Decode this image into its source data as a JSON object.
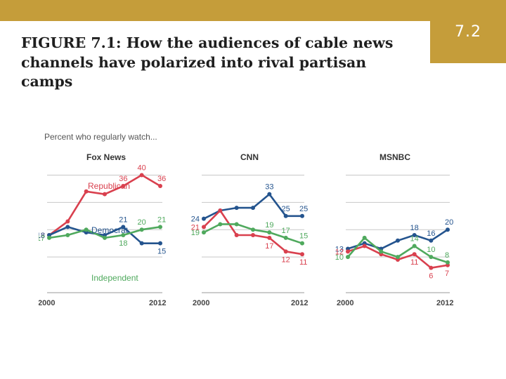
{
  "slide": {
    "title": "FIGURE 7.1: How the audiences of cable news channels have polarized into rival partisan camps",
    "badge": "7.2"
  },
  "colors": {
    "band": "#c59d3a",
    "republican": "#d9404e",
    "democrat": "#24548e",
    "independent": "#4fa95d",
    "grid": "#c8c8c8",
    "text_gray": "#555555"
  },
  "chart_data": [
    {
      "type": "line",
      "title": "Fox News",
      "subtitle": "Percent who regularly watch...",
      "x": [
        2000,
        2002,
        2004,
        2006,
        2008,
        2010,
        2012
      ],
      "x_tick_labels": [
        "2000",
        "2012"
      ],
      "ylim": [
        0,
        45
      ],
      "grid": true,
      "series": [
        {
          "name": "Republican",
          "color": "republican",
          "values": [
            18,
            23,
            34,
            33,
            36,
            40,
            36
          ],
          "labels": {
            "0": "18",
            "4": "36",
            "5": "40",
            "6": "36"
          }
        },
        {
          "name": "Democrat",
          "color": "democrat",
          "values": [
            18,
            21,
            19,
            18,
            21,
            15,
            15
          ],
          "labels": {
            "0": "18",
            "4": "21",
            "6": "15"
          }
        },
        {
          "name": "Independent",
          "color": "independent",
          "values": [
            17,
            18,
            20,
            17,
            18,
            20,
            21
          ],
          "labels": {
            "0": "17",
            "4": "18",
            "5": "20",
            "6": "21"
          }
        }
      ]
    },
    {
      "type": "line",
      "title": "CNN",
      "x": [
        2000,
        2002,
        2004,
        2006,
        2008,
        2010,
        2012
      ],
      "x_tick_labels": [
        "2000",
        "2012"
      ],
      "ylim": [
        0,
        45
      ],
      "grid": true,
      "series": [
        {
          "name": "Democrat",
          "color": "democrat",
          "values": [
            24,
            27,
            28,
            28,
            33,
            25,
            25
          ],
          "labels": {
            "0": "24",
            "4": "33",
            "5": "25",
            "6": "25"
          }
        },
        {
          "name": "Republican",
          "color": "republican",
          "values": [
            21,
            27,
            18,
            18,
            17,
            12,
            11
          ],
          "labels": {
            "0": "21",
            "4": "17",
            "5": "12",
            "6": "11"
          }
        },
        {
          "name": "Independent",
          "color": "independent",
          "values": [
            19,
            22,
            22,
            20,
            19,
            17,
            15
          ],
          "labels": {
            "0": "19",
            "4": "19",
            "5": "17",
            "6": "15"
          }
        }
      ]
    },
    {
      "type": "line",
      "title": "MSNBC",
      "x": [
        2000,
        2002,
        2004,
        2006,
        2008,
        2010,
        2012
      ],
      "x_tick_labels": [
        "2000",
        "2012"
      ],
      "ylim": [
        0,
        45
      ],
      "grid": true,
      "series": [
        {
          "name": "Democrat",
          "color": "democrat",
          "values": [
            13,
            15,
            13,
            16,
            18,
            16,
            20
          ],
          "labels": {
            "0": "13",
            "4": "18",
            "5": "16",
            "6": "20"
          }
        },
        {
          "name": "Republican",
          "color": "republican",
          "values": [
            12,
            14,
            11,
            9,
            11,
            6,
            7
          ],
          "labels": {
            "0": "12",
            "4": "11",
            "5": "6",
            "6": "7"
          }
        },
        {
          "name": "Independent",
          "color": "independent",
          "values": [
            10,
            17,
            12,
            10,
            14,
            10,
            8
          ],
          "labels": {
            "0": "10",
            "4": "14",
            "5": "10",
            "6": "8"
          }
        }
      ]
    }
  ]
}
